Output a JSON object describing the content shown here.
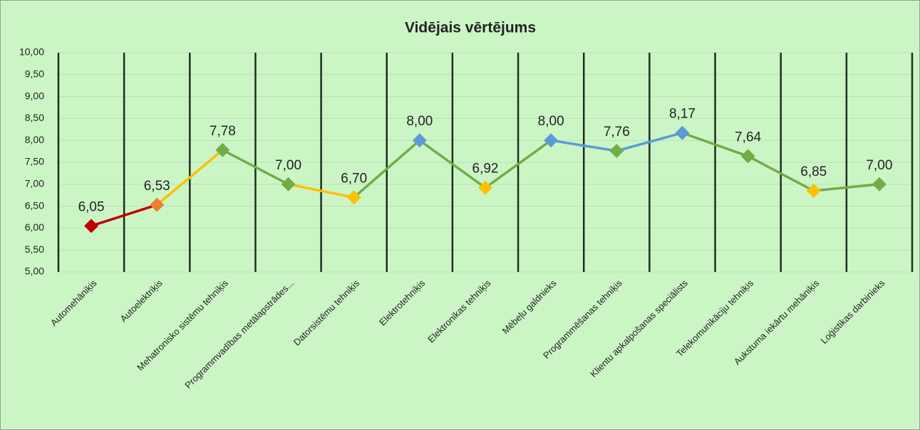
{
  "chart_data": {
    "type": "line",
    "title": "Vidējais vērtējums",
    "categories": [
      "Automehāniķis",
      "Autoelektriķis",
      "Mehatronisko sistēmu tehniķis",
      "Programmvadības metālapstrādes...",
      "Datorsistēmu tehniķis",
      "Elektrotehniķis",
      "Elektronikas tehniķis",
      "Mēbeļu galdnieks",
      "Programmēšanas tehniķis",
      "Klientu apkalpošanas speciālists",
      "Telekomunikāciju tehniķis",
      "Aukstuma iekārtu mehāniķis",
      "Loģistikas darbinieks"
    ],
    "values": [
      6.05,
      6.53,
      7.78,
      7.0,
      6.7,
      8.0,
      6.92,
      8.0,
      7.76,
      8.17,
      7.64,
      6.85,
      7.0
    ],
    "value_labels": [
      "6,05",
      "6,53",
      "7,78",
      "7,00",
      "6,70",
      "8,00",
      "6,92",
      "8,00",
      "7,76",
      "8,17",
      "7,64",
      "6,85",
      "7,00"
    ],
    "point_colors": [
      "#c00000",
      "#ed7d31",
      "#70ad47",
      "#70ad47",
      "#ffc000",
      "#5b9bd5",
      "#ffc000",
      "#5b9bd5",
      "#70ad47",
      "#5b9bd5",
      "#70ad47",
      "#ffc000",
      "#70ad47"
    ],
    "segment_colors": [
      "#c00000",
      "#ffc000",
      "#70ad47",
      "#ffc000",
      "#70ad47",
      "#70ad47",
      "#70ad47",
      "#5b9bd5",
      "#5b9bd5",
      "#70ad47",
      "#70ad47",
      "#70ad47"
    ],
    "ylim": [
      5,
      10
    ],
    "yticks": [
      {
        "value": 5,
        "label": "5,00"
      },
      {
        "value": 5.5,
        "label": "5,50"
      },
      {
        "value": 6,
        "label": "6,00"
      },
      {
        "value": 6.5,
        "label": "6,50"
      },
      {
        "value": 7,
        "label": "7,00"
      },
      {
        "value": 7.5,
        "label": "7,50"
      },
      {
        "value": 8,
        "label": "8,00"
      },
      {
        "value": 8.5,
        "label": "8,50"
      },
      {
        "value": 9,
        "label": "9,00"
      },
      {
        "value": 9.5,
        "label": "9,50"
      },
      {
        "value": 10,
        "label": "10,00"
      }
    ],
    "grid": true
  }
}
